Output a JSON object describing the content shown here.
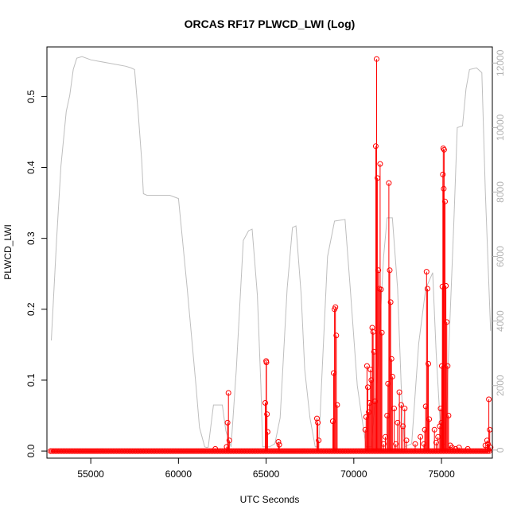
{
  "chart_data": {
    "type": "line",
    "title": "ORCAS RF17 PLWCD_LWI (Log)",
    "xlabel": "UTC Seconds",
    "ylabel": "PLWCD_LWI",
    "xlim": [
      52500,
      77900
    ],
    "ylim": [
      -0.01,
      0.57
    ],
    "y2lim": [
      -250,
      12500
    ],
    "x_ticks": [
      55000,
      60000,
      65000,
      70000,
      75000
    ],
    "x_tick_labels": [
      "55000",
      "60000",
      "65000",
      "70000",
      "75000"
    ],
    "y_ticks": [
      0.0,
      0.1,
      0.2,
      0.3,
      0.4,
      0.5
    ],
    "y_tick_labels": [
      "0.0",
      "0.1",
      "0.2",
      "0.3",
      "0.4",
      "0.5"
    ],
    "y2_ticks": [
      0,
      2000,
      4000,
      6000,
      8000,
      10000,
      12000
    ],
    "y2_tick_labels": [
      "0",
      "2000",
      "4000",
      "6000",
      "8000",
      "10000",
      "12000"
    ],
    "colors": {
      "plwcd": "#ff0000",
      "altitude": "#bebebe"
    },
    "series": [
      {
        "axis": "left",
        "style": "line+markers",
        "color": "#ff0000",
        "baseline_range": [
          52700,
          77800
        ],
        "x": [
          62100,
          62750,
          62800,
          62850,
          62900,
          64950,
          65000,
          65020,
          65050,
          65080,
          65700,
          65750,
          67900,
          67950,
          68000,
          68800,
          68850,
          68900,
          68950,
          69000,
          69050,
          70650,
          70700,
          70750,
          70800,
          70850,
          70900,
          70950,
          71000,
          71050,
          71100,
          71150,
          71200,
          71250,
          71300,
          71350,
          71400,
          71450,
          71500,
          71550,
          71600,
          71700,
          71800,
          71900,
          71950,
          72000,
          72050,
          72100,
          72150,
          72200,
          72300,
          72400,
          72500,
          72600,
          72700,
          72800,
          72900,
          73000,
          73500,
          73800,
          74000,
          74050,
          74100,
          74150,
          74200,
          74250,
          74300,
          74600,
          74700,
          74800,
          74900,
          74950,
          75000,
          75020,
          75050,
          75080,
          75100,
          75130,
          75150,
          75200,
          75250,
          75300,
          75350,
          75400,
          75500,
          75600,
          75800,
          76000,
          76500,
          77500,
          77600,
          77650,
          77700,
          77750,
          77800
        ],
        "y": [
          0.003,
          0.006,
          0.04,
          0.082,
          0.015,
          0.068,
          0.127,
          0.125,
          0.052,
          0.027,
          0.013,
          0.009,
          0.046,
          0.04,
          0.015,
          0.042,
          0.11,
          0.2,
          0.203,
          0.163,
          0.065,
          0.03,
          0.048,
          0.12,
          0.09,
          0.055,
          0.068,
          0.115,
          0.1,
          0.174,
          0.168,
          0.14,
          0.07,
          0.43,
          0.553,
          0.385,
          0.255,
          0.229,
          0.405,
          0.228,
          0.167,
          0.01,
          0.02,
          0.05,
          0.095,
          0.378,
          0.255,
          0.21,
          0.13,
          0.105,
          0.06,
          0.01,
          0.04,
          0.083,
          0.065,
          0.035,
          0.06,
          0.015,
          0.01,
          0.02,
          0.01,
          0.03,
          0.063,
          0.253,
          0.229,
          0.123,
          0.045,
          0.03,
          0.012,
          0.02,
          0.035,
          0.06,
          0.04,
          0.12,
          0.232,
          0.39,
          0.427,
          0.37,
          0.425,
          0.352,
          0.233,
          0.182,
          0.12,
          0.05,
          0.008,
          0.005,
          0.003,
          0.005,
          0.003,
          0.008,
          0.015,
          0.01,
          0.073,
          0.03,
          0.005
        ]
      },
      {
        "axis": "right",
        "style": "line",
        "color": "#bebebe",
        "x": [
          52750,
          53050,
          53300,
          53600,
          53800,
          54000,
          54200,
          54500,
          55000,
          55500,
          56000,
          56500,
          57000,
          57300,
          57500,
          57700,
          57900,
          58000,
          58200,
          59500,
          60000,
          60500,
          61000,
          61200,
          61500,
          61600,
          61700,
          62000,
          62500,
          62700,
          63000,
          63300,
          63500,
          63700,
          64000,
          64200,
          64500,
          64700,
          64800,
          65200,
          65500,
          65800,
          66200,
          66500,
          66700,
          67000,
          67200,
          67500,
          67800,
          68000,
          68200,
          68500,
          68900,
          69500,
          69800,
          70200,
          70700,
          71000,
          71300,
          71700,
          71900,
          72200,
          72500,
          72700,
          72900,
          73300,
          73700,
          74100,
          74500,
          74700,
          75000,
          75200,
          75700,
          75900,
          76200,
          76400,
          76600,
          77000,
          77300,
          77500,
          77800
        ],
        "y": [
          3400,
          6500,
          8800,
          10500,
          11000,
          11800,
          12150,
          12200,
          12100,
          12050,
          12000,
          11950,
          11900,
          11850,
          11800,
          10500,
          9000,
          7950,
          7900,
          7900,
          7800,
          5000,
          2000,
          700,
          100,
          80,
          90,
          1400,
          1400,
          600,
          100,
          2500,
          4500,
          6500,
          6800,
          6850,
          4800,
          2000,
          100,
          100,
          200,
          1000,
          5000,
          6900,
          6950,
          4800,
          2500,
          1000,
          100,
          100,
          2500,
          6000,
          7100,
          7150,
          5000,
          2000,
          100,
          100,
          2000,
          6000,
          7200,
          7200,
          5000,
          2000,
          100,
          200,
          3300,
          5000,
          5500,
          3000,
          100,
          200,
          7000,
          10000,
          10050,
          11200,
          11800,
          11850,
          11700,
          8000,
          3700
        ]
      }
    ]
  }
}
